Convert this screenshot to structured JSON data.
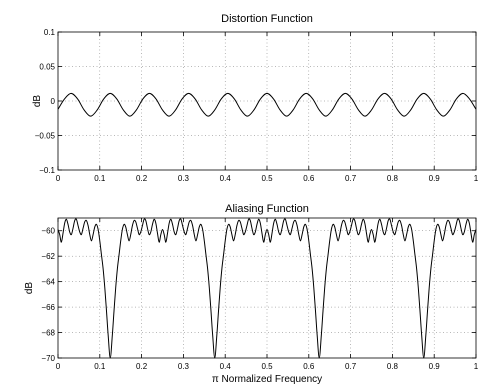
{
  "chart_data": [
    {
      "type": "line",
      "title": "Distortion Function",
      "xlabel": "",
      "ylabel": "dB",
      "xlim": [
        0,
        1
      ],
      "ylim": [
        -0.1,
        0.1
      ],
      "grid": true,
      "x_ticks": [
        0,
        0.1,
        0.2,
        0.3,
        0.4,
        0.5,
        0.6,
        0.7,
        0.8,
        0.9,
        1
      ],
      "x_tick_labels": [
        "0",
        "0.1",
        "0.2",
        "0.3",
        "0.4",
        "0.5",
        "0.6",
        "0.7",
        "0.8",
        "0.9",
        "1"
      ],
      "y_ticks": [
        -0.1,
        -0.05,
        0,
        0.05,
        0.1
      ],
      "y_tick_labels": [
        "−0.1",
        "−0.05",
        "0",
        "0.05",
        "0.1"
      ],
      "series": [
        {
          "x": [
            0,
            0.0156,
            0.0313,
            0.0469,
            0.0625,
            0.0781,
            0.0938,
            0.1094,
            0.125,
            0.1406,
            0.1563,
            0.1719,
            0.1875,
            0.2031,
            0.2188,
            0.2344,
            0.25,
            0.2656,
            0.2813,
            0.2969,
            0.3125,
            0.3281,
            0.3438,
            0.3594,
            0.375,
            0.3906,
            0.4063,
            0.4219,
            0.4375,
            0.4531,
            0.4688,
            0.4844,
            0.5,
            0.5156,
            0.5313,
            0.5469,
            0.5625,
            0.5781,
            0.5938,
            0.6094,
            0.625,
            0.6406,
            0.6563,
            0.6719,
            0.6875,
            0.7031,
            0.7188,
            0.7344,
            0.75,
            0.7656,
            0.7813,
            0.7969,
            0.8125,
            0.8281,
            0.8438,
            0.8594,
            0.875,
            0.8906,
            0.9063,
            0.9219,
            0.9375,
            0.9531,
            0.9688,
            0.9844,
            1
          ],
          "y": [
            -0.012,
            0.003,
            0.011,
            0.003,
            -0.013,
            -0.022,
            -0.013,
            0.003,
            0.011,
            0.003,
            -0.013,
            -0.022,
            -0.013,
            0.003,
            0.011,
            0.003,
            -0.013,
            -0.022,
            -0.013,
            0.003,
            0.011,
            0.003,
            -0.013,
            -0.022,
            -0.013,
            0.003,
            0.011,
            0.003,
            -0.013,
            -0.022,
            -0.013,
            0.003,
            0.011,
            0.003,
            -0.013,
            -0.022,
            -0.013,
            0.003,
            0.011,
            0.003,
            -0.013,
            -0.022,
            -0.013,
            0.003,
            0.011,
            0.003,
            -0.013,
            -0.022,
            -0.013,
            0.003,
            0.011,
            0.003,
            -0.013,
            -0.022,
            -0.013,
            0.003,
            0.011,
            0.003,
            -0.013,
            -0.022,
            -0.013,
            0.003,
            0.011,
            0.003,
            -0.012
          ]
        }
      ]
    },
    {
      "type": "line",
      "title": "Aliasing Function",
      "xlabel": "π Normalized Frequency",
      "ylabel": "dB",
      "xlim": [
        0,
        1
      ],
      "ylim": [
        -70,
        -59
      ],
      "grid": true,
      "x_ticks": [
        0,
        0.1,
        0.2,
        0.3,
        0.4,
        0.5,
        0.6,
        0.7,
        0.8,
        0.9,
        1
      ],
      "x_tick_labels": [
        "0",
        "0.1",
        "0.2",
        "0.3",
        "0.4",
        "0.5",
        "0.6",
        "0.7",
        "0.8",
        "0.9",
        "1"
      ],
      "y_ticks": [
        -70,
        -68,
        -66,
        -64,
        -62,
        -60
      ],
      "y_tick_labels": [
        "−70",
        "−68",
        "−66",
        "−64",
        "−62",
        "−60"
      ],
      "series": [
        {
          "x": [
            0,
            0.004,
            0.008,
            0.012,
            0.016,
            0.02,
            0.024,
            0.028,
            0.032,
            0.036,
            0.04,
            0.044,
            0.048,
            0.052,
            0.056,
            0.06,
            0.064,
            0.068,
            0.072,
            0.076,
            0.08,
            0.084,
            0.088,
            0.092,
            0.096,
            0.1,
            0.104,
            0.108,
            0.112,
            0.116,
            0.12,
            0.125,
            0.13,
            0.134,
            0.138,
            0.142,
            0.146,
            0.15,
            0.154,
            0.158,
            0.162,
            0.166,
            0.17,
            0.174,
            0.178,
            0.182,
            0.186,
            0.19,
            0.194,
            0.198,
            0.202,
            0.206,
            0.21,
            0.214,
            0.218,
            0.222,
            0.226,
            0.23,
            0.234,
            0.238,
            0.242,
            0.246,
            0.25,
            0.254,
            0.258,
            0.262,
            0.266,
            0.27,
            0.274,
            0.278,
            0.282,
            0.286,
            0.29,
            0.294,
            0.298,
            0.302,
            0.306,
            0.31,
            0.314,
            0.318,
            0.322,
            0.326,
            0.33,
            0.334,
            0.338,
            0.342,
            0.346,
            0.35,
            0.354,
            0.358,
            0.362,
            0.366,
            0.37,
            0.375,
            0.38,
            0.384,
            0.388,
            0.392,
            0.396,
            0.4,
            0.404,
            0.408,
            0.412,
            0.416,
            0.42,
            0.424,
            0.428,
            0.432,
            0.436,
            0.44,
            0.444,
            0.448,
            0.452,
            0.456,
            0.46,
            0.464,
            0.468,
            0.472,
            0.476,
            0.48,
            0.484,
            0.488,
            0.492,
            0.496,
            0.5,
            0.504,
            0.508,
            0.512,
            0.516,
            0.52,
            0.524,
            0.528,
            0.532,
            0.536,
            0.54,
            0.544,
            0.548,
            0.552,
            0.556,
            0.56,
            0.564,
            0.568,
            0.572,
            0.576,
            0.58,
            0.584,
            0.588,
            0.592,
            0.596,
            0.6,
            0.604,
            0.608,
            0.612,
            0.616,
            0.62,
            0.625,
            0.63,
            0.634,
            0.638,
            0.642,
            0.646,
            0.65,
            0.654,
            0.658,
            0.662,
            0.666,
            0.67,
            0.674,
            0.678,
            0.682,
            0.686,
            0.69,
            0.694,
            0.698,
            0.702,
            0.706,
            0.71,
            0.714,
            0.718,
            0.722,
            0.726,
            0.73,
            0.734,
            0.738,
            0.742,
            0.746,
            0.75,
            0.754,
            0.758,
            0.762,
            0.766,
            0.77,
            0.774,
            0.778,
            0.782,
            0.786,
            0.79,
            0.794,
            0.798,
            0.802,
            0.806,
            0.81,
            0.814,
            0.818,
            0.822,
            0.826,
            0.83,
            0.834,
            0.838,
            0.842,
            0.846,
            0.85,
            0.854,
            0.858,
            0.862,
            0.866,
            0.87,
            0.875,
            0.88,
            0.884,
            0.888,
            0.892,
            0.896,
            0.9,
            0.904,
            0.908,
            0.912,
            0.916,
            0.92,
            0.924,
            0.928,
            0.932,
            0.936,
            0.94,
            0.944,
            0.948,
            0.952,
            0.956,
            0.96,
            0.964,
            0.968,
            0.972,
            0.976,
            0.98,
            0.984,
            0.988,
            0.992,
            0.996,
            1
          ],
          "y": [
            -59.9,
            -60.3,
            -60.9,
            -60.2,
            -59.4,
            -59.1,
            -59.5,
            -60.1,
            -60.3,
            -59.8,
            -59.2,
            -59.1,
            -59.6,
            -60.1,
            -60.3,
            -59.8,
            -59.3,
            -59.2,
            -59.6,
            -60.3,
            -60.8,
            -60.3,
            -59.7,
            -59.5,
            -59.9,
            -60.8,
            -61.9,
            -63.0,
            -64.5,
            -66.3,
            -68.2,
            -70.0,
            -68.2,
            -66.3,
            -64.5,
            -63.0,
            -61.9,
            -60.8,
            -59.9,
            -59.5,
            -59.7,
            -60.3,
            -60.8,
            -60.3,
            -59.6,
            -59.2,
            -59.3,
            -59.8,
            -60.3,
            -60.1,
            -59.6,
            -59.1,
            -59.2,
            -59.8,
            -60.3,
            -60.1,
            -59.5,
            -59.1,
            -59.4,
            -60.2,
            -60.9,
            -60.3,
            -59.9,
            -60.3,
            -60.9,
            -60.2,
            -59.4,
            -59.1,
            -59.5,
            -60.1,
            -60.3,
            -59.8,
            -59.2,
            -59.1,
            -59.6,
            -60.1,
            -60.3,
            -59.8,
            -59.3,
            -59.2,
            -59.6,
            -60.3,
            -60.8,
            -60.3,
            -59.7,
            -59.5,
            -59.9,
            -60.8,
            -61.9,
            -63.0,
            -64.5,
            -66.3,
            -68.2,
            -70.0,
            -68.2,
            -66.3,
            -64.5,
            -63.0,
            -61.9,
            -60.8,
            -59.9,
            -59.5,
            -59.7,
            -60.3,
            -60.8,
            -60.3,
            -59.6,
            -59.2,
            -59.3,
            -59.8,
            -60.3,
            -60.1,
            -59.6,
            -59.1,
            -59.2,
            -59.8,
            -60.3,
            -60.1,
            -59.5,
            -59.1,
            -59.4,
            -60.2,
            -60.9,
            -60.3,
            -59.9,
            -60.3,
            -60.9,
            -60.2,
            -59.4,
            -59.1,
            -59.5,
            -60.1,
            -60.3,
            -59.8,
            -59.2,
            -59.1,
            -59.6,
            -60.1,
            -60.3,
            -59.8,
            -59.3,
            -59.2,
            -59.6,
            -60.3,
            -60.8,
            -60.3,
            -59.7,
            -59.5,
            -59.9,
            -60.8,
            -61.9,
            -63.0,
            -64.5,
            -66.3,
            -68.2,
            -70.0,
            -68.2,
            -66.3,
            -64.5,
            -63.0,
            -61.9,
            -60.8,
            -59.9,
            -59.5,
            -59.7,
            -60.3,
            -60.8,
            -60.3,
            -59.6,
            -59.2,
            -59.3,
            -59.8,
            -60.3,
            -60.1,
            -59.6,
            -59.1,
            -59.2,
            -59.8,
            -60.3,
            -60.1,
            -59.5,
            -59.1,
            -59.4,
            -60.2,
            -60.9,
            -60.3,
            -59.9,
            -60.3,
            -60.9,
            -60.2,
            -59.4,
            -59.1,
            -59.5,
            -60.1,
            -60.3,
            -59.8,
            -59.2,
            -59.1,
            -59.6,
            -60.1,
            -60.3,
            -59.8,
            -59.3,
            -59.2,
            -59.6,
            -60.3,
            -60.8,
            -60.3,
            -59.7,
            -59.5,
            -59.9,
            -60.8,
            -61.9,
            -63.0,
            -64.5,
            -66.3,
            -68.2,
            -70.0,
            -68.2,
            -66.3,
            -64.5,
            -63.0,
            -61.9,
            -60.8,
            -59.9,
            -59.5,
            -59.7,
            -60.3,
            -60.8,
            -60.3,
            -59.6,
            -59.2,
            -59.3,
            -59.8,
            -60.3,
            -60.1,
            -59.6,
            -59.1,
            -59.2,
            -59.8,
            -60.3,
            -60.1,
            -59.5,
            -59.1,
            -59.4,
            -60.2,
            -60.9,
            -60.3,
            -59.9
          ]
        }
      ]
    }
  ]
}
